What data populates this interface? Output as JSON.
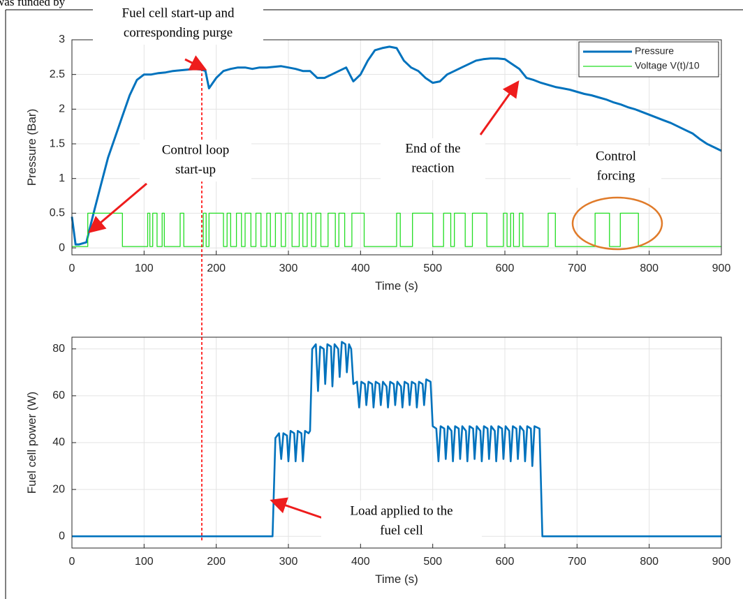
{
  "header_fragment": "was funded by",
  "reference_line": {
    "x": 180,
    "color": "#ff0000"
  },
  "annotations": [
    {
      "lines": [
        "Fuel cell start-up and",
        "corresponding purge"
      ]
    },
    {
      "lines": [
        "Control loop",
        "start-up"
      ]
    },
    {
      "lines": [
        "End of the",
        "reaction"
      ]
    },
    {
      "lines": [
        "Control",
        "forcing"
      ]
    },
    {
      "lines": [
        "Load applied to the",
        "fuel cell"
      ]
    }
  ],
  "chart_data": [
    {
      "type": "line",
      "xlabel": "Time (s)",
      "ylabel": "Pressure (Bar)",
      "xlim": [
        0,
        900
      ],
      "ylim": [
        -0.1,
        3
      ],
      "xticks": [
        0,
        100,
        200,
        300,
        400,
        500,
        600,
        700,
        800,
        900
      ],
      "yticks": [
        0,
        0.5,
        1,
        1.5,
        2,
        2.5,
        3
      ],
      "grid": true,
      "legend": "northeast",
      "series": [
        {
          "name": "Pressure",
          "color": "#0072bd",
          "x": [
            0,
            5,
            10,
            20,
            30,
            40,
            50,
            60,
            70,
            80,
            90,
            100,
            110,
            120,
            130,
            140,
            150,
            160,
            170,
            180,
            185,
            190,
            200,
            210,
            220,
            230,
            240,
            250,
            260,
            270,
            280,
            290,
            300,
            310,
            320,
            330,
            340,
            350,
            360,
            370,
            380,
            390,
            400,
            410,
            420,
            430,
            440,
            450,
            460,
            470,
            480,
            490,
            500,
            510,
            520,
            530,
            540,
            550,
            560,
            570,
            580,
            590,
            600,
            610,
            620,
            630,
            640,
            650,
            660,
            670,
            680,
            690,
            700,
            710,
            720,
            730,
            740,
            750,
            760,
            770,
            780,
            790,
            800,
            810,
            820,
            830,
            840,
            850,
            860,
            870,
            880,
            890,
            900
          ],
          "values": [
            0.45,
            0.05,
            0.05,
            0.08,
            0.5,
            0.9,
            1.3,
            1.6,
            1.9,
            2.2,
            2.42,
            2.5,
            2.5,
            2.52,
            2.53,
            2.55,
            2.56,
            2.57,
            2.58,
            2.57,
            2.55,
            2.3,
            2.45,
            2.55,
            2.58,
            2.6,
            2.6,
            2.58,
            2.6,
            2.6,
            2.61,
            2.62,
            2.6,
            2.58,
            2.55,
            2.55,
            2.45,
            2.45,
            2.5,
            2.55,
            2.6,
            2.4,
            2.5,
            2.7,
            2.85,
            2.88,
            2.9,
            2.88,
            2.7,
            2.6,
            2.55,
            2.45,
            2.38,
            2.4,
            2.5,
            2.55,
            2.6,
            2.65,
            2.7,
            2.72,
            2.73,
            2.73,
            2.72,
            2.65,
            2.58,
            2.45,
            2.42,
            2.38,
            2.35,
            2.32,
            2.3,
            2.28,
            2.25,
            2.22,
            2.2,
            2.17,
            2.14,
            2.1,
            2.07,
            2.03,
            2.0,
            1.96,
            1.92,
            1.88,
            1.84,
            1.8,
            1.75,
            1.7,
            1.65,
            1.57,
            1.5,
            1.45,
            1.4
          ]
        },
        {
          "name": "Voltage V(t)/10",
          "color": "#22dd22",
          "x": [
            0,
            22,
            22,
            70,
            70,
            105,
            105,
            108,
            108,
            112,
            112,
            118,
            118,
            125,
            125,
            128,
            128,
            150,
            150,
            155,
            155,
            182,
            182,
            186,
            186,
            190,
            190,
            210,
            210,
            215,
            215,
            220,
            220,
            228,
            228,
            235,
            235,
            240,
            240,
            248,
            248,
            255,
            255,
            262,
            262,
            270,
            270,
            275,
            275,
            282,
            282,
            290,
            290,
            296,
            296,
            305,
            305,
            315,
            315,
            320,
            320,
            326,
            326,
            332,
            332,
            338,
            338,
            345,
            345,
            355,
            355,
            365,
            365,
            370,
            370,
            378,
            378,
            388,
            388,
            405,
            405,
            450,
            450,
            455,
            455,
            472,
            472,
            500,
            500,
            515,
            515,
            525,
            525,
            530,
            530,
            545,
            545,
            555,
            555,
            575,
            575,
            598,
            598,
            603,
            603,
            608,
            608,
            612,
            612,
            620,
            620,
            625,
            625,
            660,
            660,
            670,
            670,
            725,
            725,
            745,
            745,
            760,
            760,
            785,
            785,
            900
          ],
          "values": [
            0.02,
            0.02,
            0.5,
            0.5,
            0.02,
            0.02,
            0.5,
            0.5,
            0.02,
            0.02,
            0.5,
            0.5,
            0.02,
            0.02,
            0.5,
            0.5,
            0.02,
            0.02,
            0.5,
            0.5,
            0.02,
            0.02,
            0.5,
            0.5,
            0.02,
            0.02,
            0.5,
            0.5,
            0.02,
            0.02,
            0.5,
            0.5,
            0.02,
            0.02,
            0.5,
            0.5,
            0.02,
            0.02,
            0.5,
            0.5,
            0.02,
            0.02,
            0.5,
            0.5,
            0.02,
            0.02,
            0.5,
            0.5,
            0.02,
            0.02,
            0.5,
            0.5,
            0.02,
            0.02,
            0.5,
            0.5,
            0.02,
            0.02,
            0.5,
            0.5,
            0.02,
            0.02,
            0.5,
            0.5,
            0.02,
            0.02,
            0.5,
            0.5,
            0.02,
            0.02,
            0.5,
            0.5,
            0.02,
            0.02,
            0.5,
            0.5,
            0.02,
            0.02,
            0.5,
            0.5,
            0.02,
            0.02,
            0.5,
            0.5,
            0.02,
            0.02,
            0.5,
            0.5,
            0.02,
            0.02,
            0.5,
            0.5,
            0.02,
            0.02,
            0.5,
            0.5,
            0.02,
            0.02,
            0.5,
            0.5,
            0.02,
            0.02,
            0.5,
            0.5,
            0.02,
            0.02,
            0.5,
            0.5,
            0.02,
            0.02,
            0.5,
            0.5,
            0.02,
            0.02,
            0.5,
            0.5,
            0.02,
            0.02,
            0.5,
            0.5,
            0.02,
            0.02,
            0.5,
            0.5,
            0.02,
            0.02
          ]
        }
      ]
    },
    {
      "type": "line",
      "xlabel": "Time (s)",
      "ylabel": "Fuel cell power (W)",
      "xlim": [
        0,
        900
      ],
      "ylim": [
        -5,
        85
      ],
      "xticks": [
        0,
        100,
        200,
        300,
        400,
        500,
        600,
        700,
        800,
        900
      ],
      "yticks": [
        0,
        20,
        40,
        60,
        80
      ],
      "grid": true,
      "series": [
        {
          "name": null,
          "color": "#0072bd",
          "x": [
            0,
            278,
            282,
            287,
            290,
            293,
            298,
            300,
            303,
            308,
            310,
            313,
            318,
            320,
            323,
            328,
            330,
            333,
            338,
            341,
            344,
            349,
            351,
            354,
            359,
            361,
            364,
            369,
            371,
            374,
            379,
            381,
            384,
            387,
            390,
            395,
            398,
            401,
            406,
            408,
            411,
            416,
            418,
            421,
            426,
            428,
            431,
            436,
            438,
            441,
            446,
            448,
            451,
            456,
            458,
            461,
            466,
            468,
            471,
            476,
            478,
            481,
            486,
            488,
            491,
            497,
            500,
            505,
            508,
            511,
            516,
            518,
            521,
            526,
            528,
            531,
            536,
            538,
            541,
            546,
            548,
            551,
            556,
            558,
            561,
            566,
            568,
            571,
            576,
            578,
            581,
            586,
            588,
            591,
            596,
            598,
            601,
            606,
            608,
            611,
            616,
            618,
            621,
            626,
            628,
            631,
            636,
            638,
            641,
            648,
            652,
            900
          ],
          "values": [
            0,
            0,
            42,
            44,
            33,
            44,
            43,
            32,
            45,
            44,
            32,
            45,
            44,
            32,
            45,
            44,
            45,
            80,
            82,
            62,
            81,
            80,
            65,
            82,
            81,
            64,
            82,
            80,
            68,
            83,
            82,
            70,
            82,
            80,
            65,
            66,
            55,
            66,
            65,
            56,
            66,
            65,
            55,
            66,
            65,
            56,
            66,
            64,
            55,
            66,
            65,
            56,
            66,
            64,
            55,
            66,
            65,
            56,
            66,
            65,
            55,
            66,
            65,
            56,
            67,
            66,
            47,
            46,
            32,
            47,
            46,
            33,
            47,
            45,
            32,
            47,
            46,
            33,
            47,
            45,
            32,
            47,
            46,
            33,
            47,
            45,
            32,
            47,
            46,
            33,
            47,
            45,
            32,
            47,
            46,
            33,
            47,
            45,
            32,
            47,
            46,
            33,
            47,
            45,
            32,
            47,
            46,
            30,
            47,
            46,
            0,
            0
          ]
        }
      ]
    }
  ]
}
